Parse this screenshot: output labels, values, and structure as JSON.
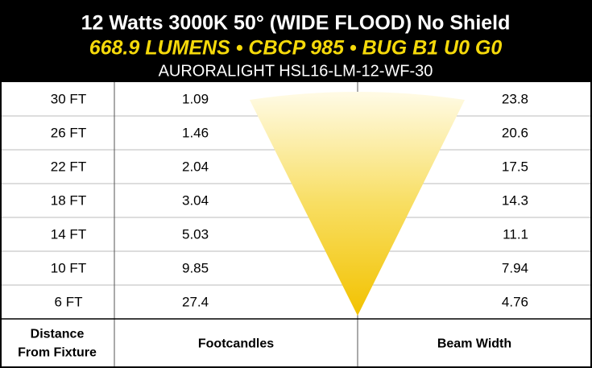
{
  "header": {
    "title": "12 Watts 3000K 50° (WIDE FLOOD) No Shield",
    "subtitle": "668.9 LUMENS • CBCP 985 • BUG B1 U0 G0",
    "model": "AURORALIGHT HSL16-LM-12-WF-30"
  },
  "table": {
    "rows": [
      [
        "30 FT",
        "1.09",
        "23.8"
      ],
      [
        "26 FT",
        "1.46",
        "20.6"
      ],
      [
        "22 FT",
        "2.04",
        "17.5"
      ],
      [
        "18 FT",
        "3.04",
        "14.3"
      ],
      [
        "14 FT",
        "5.03",
        "11.1"
      ],
      [
        "10 FT",
        "9.85",
        "7.94"
      ],
      [
        "6 FT",
        "27.4",
        "4.76"
      ]
    ],
    "columns": [
      [
        "Distance",
        "From Fixture"
      ],
      "Footcandles",
      "Beam Width"
    ]
  }
}
